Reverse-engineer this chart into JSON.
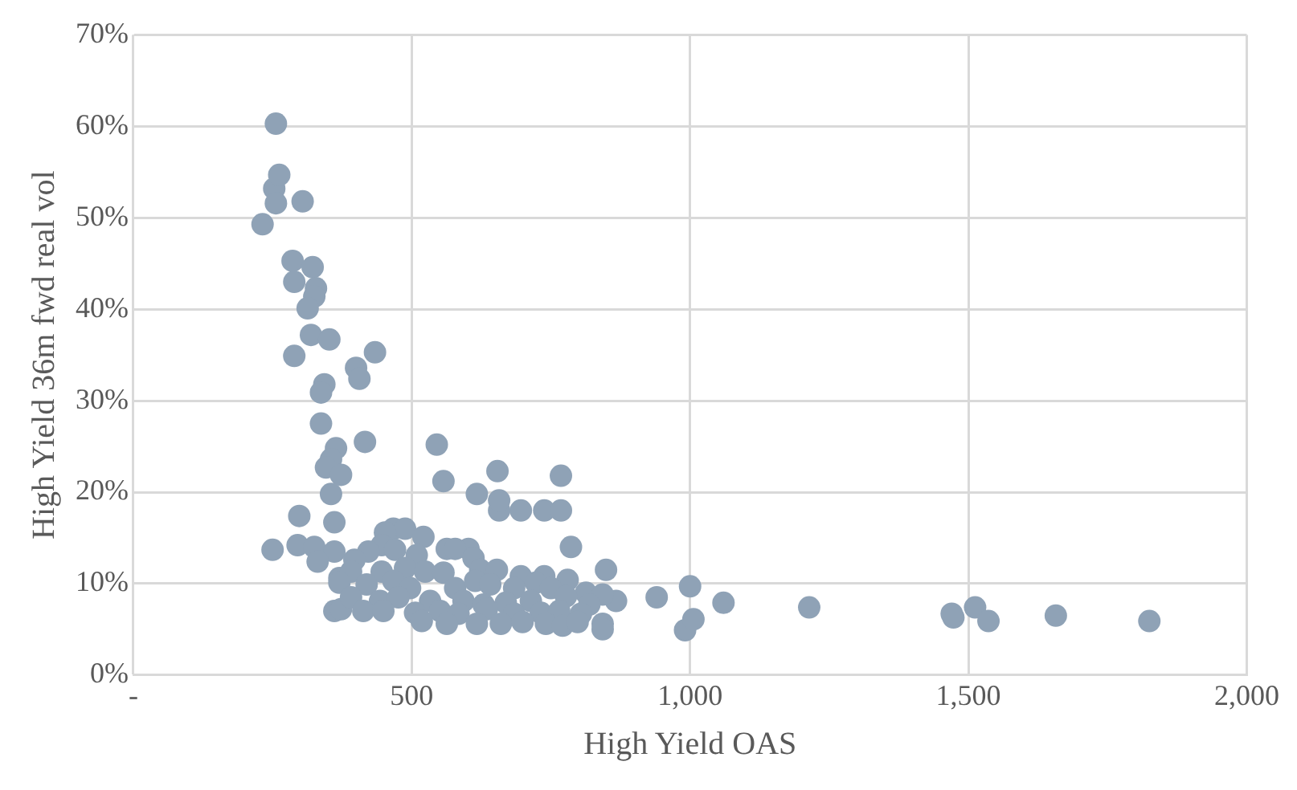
{
  "chart_data": {
    "type": "scatter",
    "xlabel": "High Yield OAS",
    "ylabel": "High Yield 36m fwd real vol",
    "xlim": [
      0,
      2000
    ],
    "xticks": [
      {
        "value": 0,
        "label": "-"
      },
      500,
      {
        "value": 1000,
        "label": "1,000"
      },
      {
        "value": 1500,
        "label": "1,500"
      },
      {
        "value": 2000,
        "label": "2,000"
      }
    ],
    "ylim": [
      0,
      70
    ],
    "yticks": [
      {
        "value": 0,
        "label": "0%"
      },
      {
        "value": 10,
        "label": "10%"
      },
      {
        "value": 20,
        "label": "20%"
      },
      {
        "value": 30,
        "label": "30%"
      },
      {
        "value": 40,
        "label": "40%"
      },
      {
        "value": 50,
        "label": "50%"
      },
      {
        "value": 60,
        "label": "60%"
      },
      {
        "value": 70,
        "label": "70%"
      }
    ],
    "grid": true,
    "marker": "circle",
    "series": [
      {
        "color": "#8fa2b6",
        "x": [
          256,
          253,
          262,
          256,
          304,
          232,
          286,
          322,
          289,
          328,
          325,
          313,
          319,
          352,
          289,
          434,
          400,
          406,
          343,
          337,
          337,
          416,
          364,
          355,
          346,
          373,
          355,
          361,
          545,
          557,
          654,
          617,
          696,
          657,
          738,
          768,
          768,
          657,
          786,
          298,
          250,
          295,
          325,
          361,
          331,
          370,
          361,
          373,
          849,
          867,
          940,
          1000,
          991,
          1006,
          1060,
          1214,
          1473,
          1470,
          1512,
          1536,
          1657,
          1825,
          467,
          488,
          452,
          521,
          602,
          563,
          578,
          611,
          446,
          470,
          422,
          509,
          397,
          391,
          446,
          488,
          524,
          557,
          623,
          653,
          696,
          738,
          780,
          370,
          419,
          467,
          497,
          578,
          614,
          641,
          684,
          723,
          750,
          813,
          843,
          391,
          443,
          476,
          533,
          593,
          629,
          669,
          714,
          777,
          819,
          413,
          449,
          506,
          551,
          584,
          635,
          684,
          732,
          765,
          804,
          518,
          563,
          617,
          660,
          699,
          741,
          771,
          843,
          843,
          798
        ],
        "values": [
          60.3,
          53.2,
          54.7,
          51.6,
          51.8,
          49.3,
          45.3,
          44.6,
          43.0,
          42.3,
          41.4,
          40.1,
          37.2,
          36.7,
          34.9,
          35.3,
          33.6,
          32.4,
          31.8,
          30.9,
          27.5,
          25.5,
          24.8,
          23.6,
          22.7,
          21.9,
          19.8,
          16.7,
          25.2,
          21.2,
          22.3,
          19.8,
          18.0,
          18.0,
          18.0,
          18.0,
          21.8,
          19.1,
          14.0,
          17.4,
          13.7,
          14.2,
          14.0,
          13.5,
          12.4,
          10.6,
          7.0,
          7.2,
          11.5,
          8.1,
          8.5,
          9.7,
          4.9,
          6.1,
          7.9,
          7.4,
          6.3,
          6.7,
          7.4,
          5.9,
          6.5,
          5.9,
          16.0,
          16.0,
          15.6,
          15.1,
          13.8,
          13.8,
          13.8,
          12.8,
          14.2,
          13.7,
          13.5,
          13.1,
          12.6,
          11.3,
          11.3,
          11.7,
          11.3,
          11.2,
          11.5,
          11.5,
          10.8,
          10.8,
          10.4,
          10.1,
          9.9,
          10.3,
          9.5,
          9.5,
          10.3,
          9.9,
          9.5,
          10.1,
          9.5,
          9.0,
          8.8,
          8.5,
          8.1,
          8.5,
          8.1,
          8.1,
          7.7,
          7.9,
          8.1,
          8.6,
          7.7,
          7.0,
          7.0,
          6.8,
          7.0,
          6.7,
          7.2,
          6.7,
          6.8,
          7.0,
          6.7,
          5.9,
          5.6,
          5.6,
          5.6,
          5.8,
          5.6,
          5.4,
          5.6,
          5.0,
          5.8
        ]
      }
    ]
  }
}
